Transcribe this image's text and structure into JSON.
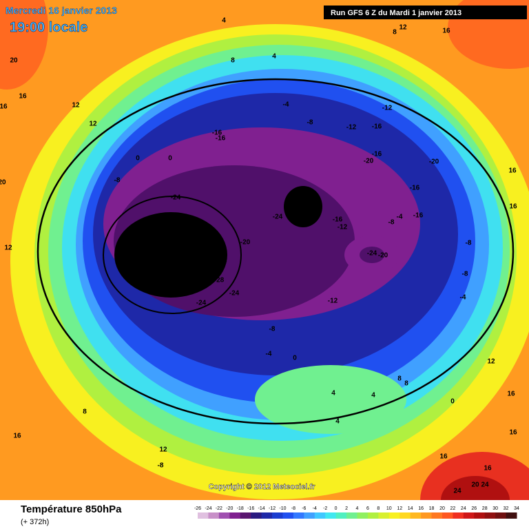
{
  "header": {
    "date": "Mercredi 16 janvier 2013",
    "time": "19:00 locale",
    "run": "Run GFS 6 Z du Mardi 1 janvier 2013"
  },
  "copyright": "Copyright © 2012 Meteociel.fr",
  "footer": {
    "title": "Température 850hPa",
    "lead": "(+ 372h)"
  },
  "legend": {
    "ticks": [
      -26,
      -24,
      -22,
      -20,
      -18,
      -16,
      -14,
      -12,
      -10,
      -8,
      -6,
      -4,
      -2,
      0,
      2,
      4,
      6,
      8,
      10,
      12,
      14,
      16,
      18,
      20,
      22,
      24,
      26,
      28,
      30,
      32,
      34
    ],
    "colors": [
      "#e0c0e0",
      "#c890c8",
      "#a050b0",
      "#802090",
      "#5a1670",
      "#2a1a80",
      "#1e28a8",
      "#1a3cd0",
      "#2050f0",
      "#3278ff",
      "#40a0ff",
      "#40c8ff",
      "#40e8f0",
      "#50f0c0",
      "#70f090",
      "#90f060",
      "#b0f040",
      "#d8f030",
      "#f8f020",
      "#ffd820",
      "#ffb820",
      "#ff9820",
      "#ff7820",
      "#ff5820",
      "#f03020",
      "#d01818",
      "#b01010",
      "#901010",
      "#701010",
      "#401010"
    ]
  },
  "contour_labels": [
    20,
    16,
    16,
    12,
    12,
    4,
    4,
    8,
    -4,
    -8,
    -12,
    -12,
    -16,
    -16,
    -16,
    0,
    0,
    -8,
    -24,
    -28,
    -24,
    -16,
    -12,
    -20,
    -28,
    -28,
    -24,
    -28,
    -24,
    -24,
    -24,
    -20,
    -12,
    -8,
    -4,
    0,
    -16,
    -20,
    -20,
    -16,
    -4,
    -8,
    -16,
    -8,
    -8,
    -4,
    12,
    16,
    16,
    0,
    4,
    4,
    4,
    8,
    16,
    12,
    -8,
    16,
    16,
    24,
    20,
    24,
    16,
    12,
    8,
    12,
    20,
    16,
    16,
    8,
    8
  ]
}
